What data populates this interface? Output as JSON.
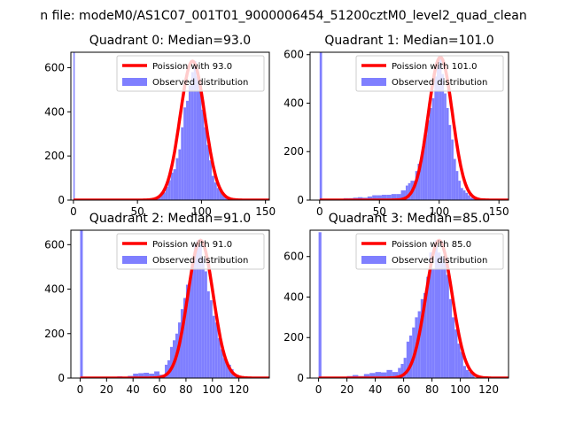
{
  "suptitle": "n file: modeM0/AS1C07_001T01_9000006454_51200cztM0_level2_quad_clean",
  "colors": {
    "hist": "#7f7fff",
    "poisson": "#ff0000",
    "axis": "#000000"
  },
  "chart_data": [
    {
      "type": "bar",
      "title": "Quadrant 0: Median=93.0",
      "xlim": [
        -2,
        153
      ],
      "ylim": [
        0,
        670
      ],
      "xticks": [
        "0",
        "50",
        "100",
        "150"
      ],
      "yticks": [
        "0",
        "200",
        "400",
        "600"
      ],
      "legend_position": "upper right",
      "series": [
        {
          "name": "Poission with 93.0",
          "type": "line",
          "mean": 93.0
        },
        {
          "name": "Observed distribution",
          "type": "histogram",
          "bins": [
            [
              0,
              1,
              700
            ],
            [
              1,
              60,
              0
            ],
            [
              60,
              62,
              5
            ],
            [
              62,
              64,
              8
            ],
            [
              64,
              66,
              10
            ],
            [
              66,
              68,
              15
            ],
            [
              68,
              70,
              25
            ],
            [
              70,
              72,
              35
            ],
            [
              72,
              74,
              60
            ],
            [
              74,
              76,
              90
            ],
            [
              76,
              78,
              125
            ],
            [
              78,
              80,
              140
            ],
            [
              80,
              82,
              190
            ],
            [
              82,
              84,
              230
            ],
            [
              84,
              86,
              330
            ],
            [
              86,
              88,
              420
            ],
            [
              88,
              90,
              450
            ],
            [
              90,
              92,
              520
            ],
            [
              92,
              94,
              580
            ],
            [
              94,
              96,
              630
            ],
            [
              96,
              98,
              560
            ],
            [
              98,
              100,
              500
            ],
            [
              100,
              102,
              410
            ],
            [
              102,
              104,
              330
            ],
            [
              104,
              106,
              250
            ],
            [
              106,
              108,
              180
            ],
            [
              108,
              110,
              110
            ],
            [
              110,
              112,
              80
            ],
            [
              112,
              114,
              55
            ],
            [
              114,
              116,
              40
            ],
            [
              116,
              118,
              25
            ],
            [
              118,
              120,
              15
            ],
            [
              120,
              122,
              10
            ],
            [
              122,
              124,
              5
            ],
            [
              124,
              126,
              3
            ]
          ]
        }
      ]
    },
    {
      "type": "bar",
      "title": "Quadrant 1: Median=101.0",
      "xlim": [
        -8,
        158
      ],
      "ylim": [
        0,
        610
      ],
      "xticks": [
        "0",
        "50",
        "100",
        "150"
      ],
      "yticks": [
        "0",
        "200",
        "400",
        "600"
      ],
      "legend_position": "upper right",
      "series": [
        {
          "name": "Poission with 101.0",
          "type": "line",
          "mean": 101.0
        },
        {
          "name": "Observed distribution",
          "type": "histogram",
          "bins": [
            [
              0,
              2,
              610
            ],
            [
              20,
              24,
              8
            ],
            [
              24,
              28,
              8
            ],
            [
              28,
              32,
              10
            ],
            [
              32,
              36,
              12
            ],
            [
              36,
              40,
              10
            ],
            [
              40,
              44,
              15
            ],
            [
              44,
              48,
              20
            ],
            [
              48,
              52,
              20
            ],
            [
              52,
              56,
              22
            ],
            [
              56,
              60,
              22
            ],
            [
              60,
              64,
              25
            ],
            [
              64,
              68,
              25
            ],
            [
              68,
              72,
              40
            ],
            [
              72,
              74,
              60
            ],
            [
              74,
              76,
              70
            ],
            [
              76,
              78,
              80
            ],
            [
              78,
              80,
              80
            ],
            [
              80,
              82,
              120
            ],
            [
              82,
              84,
              150
            ],
            [
              84,
              86,
              170
            ],
            [
              86,
              88,
              210
            ],
            [
              88,
              90,
              270
            ],
            [
              90,
              92,
              330
            ],
            [
              92,
              94,
              380
            ],
            [
              94,
              96,
              420
            ],
            [
              96,
              98,
              510
            ],
            [
              98,
              100,
              560
            ],
            [
              100,
              102,
              590
            ],
            [
              102,
              104,
              520
            ],
            [
              104,
              106,
              440
            ],
            [
              106,
              108,
              380
            ],
            [
              108,
              110,
              310
            ],
            [
              110,
              112,
              250
            ],
            [
              112,
              114,
              170
            ],
            [
              114,
              116,
              120
            ],
            [
              116,
              118,
              80
            ],
            [
              118,
              120,
              50
            ],
            [
              120,
              122,
              40
            ],
            [
              122,
              124,
              30
            ],
            [
              124,
              126,
              20
            ],
            [
              126,
              128,
              10
            ],
            [
              128,
              130,
              6
            ]
          ]
        }
      ]
    },
    {
      "type": "bar",
      "title": "Quadrant 2: Median=91.0",
      "xlim": [
        -7,
        143
      ],
      "ylim": [
        0,
        665
      ],
      "xticks": [
        "0",
        "20",
        "40",
        "60",
        "80",
        "100",
        "120"
      ],
      "yticks": [
        "0",
        "200",
        "400",
        "600"
      ],
      "legend_position": "upper right",
      "series": [
        {
          "name": "Poission with 91.0",
          "type": "line",
          "mean": 91.0
        },
        {
          "name": "Observed distribution",
          "type": "histogram",
          "bins": [
            [
              0,
              2,
              700
            ],
            [
              20,
              24,
              5
            ],
            [
              24,
              28,
              6
            ],
            [
              28,
              32,
              8
            ],
            [
              32,
              36,
              6
            ],
            [
              36,
              40,
              10
            ],
            [
              40,
              44,
              20
            ],
            [
              44,
              48,
              22
            ],
            [
              48,
              52,
              24
            ],
            [
              52,
              56,
              20
            ],
            [
              56,
              60,
              30
            ],
            [
              60,
              64,
              15
            ],
            [
              64,
              66,
              60
            ],
            [
              66,
              68,
              80
            ],
            [
              68,
              70,
              140
            ],
            [
              70,
              72,
              170
            ],
            [
              72,
              74,
              200
            ],
            [
              74,
              76,
              250
            ],
            [
              76,
              78,
              310
            ],
            [
              78,
              80,
              360
            ],
            [
              80,
              82,
              420
            ],
            [
              82,
              84,
              440
            ],
            [
              84,
              86,
              510
            ],
            [
              86,
              88,
              600
            ],
            [
              88,
              90,
              620
            ],
            [
              90,
              92,
              600
            ],
            [
              92,
              94,
              540
            ],
            [
              94,
              96,
              480
            ],
            [
              96,
              98,
              390
            ],
            [
              98,
              100,
              350
            ],
            [
              100,
              102,
              280
            ],
            [
              102,
              104,
              250
            ],
            [
              104,
              106,
              180
            ],
            [
              106,
              108,
              130
            ],
            [
              108,
              110,
              90
            ],
            [
              110,
              112,
              70
            ],
            [
              112,
              114,
              60
            ],
            [
              114,
              116,
              40
            ],
            [
              116,
              118,
              20
            ],
            [
              118,
              120,
              10
            ]
          ]
        }
      ]
    },
    {
      "type": "bar",
      "title": "Quadrant 3: Median=85.0",
      "xlim": [
        -6,
        134
      ],
      "ylim": [
        0,
        730
      ],
      "xticks": [
        "0",
        "20",
        "40",
        "60",
        "80",
        "100",
        "120"
      ],
      "yticks": [
        "0",
        "200",
        "400",
        "600"
      ],
      "legend_position": "upper right",
      "series": [
        {
          "name": "Poission with 85.0",
          "type": "line",
          "mean": 85.0
        },
        {
          "name": "Observed distribution",
          "type": "histogram",
          "bins": [
            [
              0,
              2,
              720
            ],
            [
              20,
              24,
              10
            ],
            [
              24,
              28,
              15
            ],
            [
              28,
              32,
              10
            ],
            [
              32,
              36,
              20
            ],
            [
              36,
              40,
              25
            ],
            [
              40,
              44,
              30
            ],
            [
              44,
              48,
              28
            ],
            [
              48,
              52,
              40
            ],
            [
              52,
              56,
              30
            ],
            [
              56,
              58,
              50
            ],
            [
              58,
              60,
              70
            ],
            [
              60,
              62,
              100
            ],
            [
              62,
              64,
              180
            ],
            [
              64,
              66,
              210
            ],
            [
              66,
              68,
              250
            ],
            [
              68,
              70,
              300
            ],
            [
              70,
              72,
              330
            ],
            [
              72,
              74,
              390
            ],
            [
              74,
              76,
              420
            ],
            [
              76,
              78,
              500
            ],
            [
              78,
              80,
              620
            ],
            [
              80,
              82,
              540
            ],
            [
              82,
              84,
              680
            ],
            [
              84,
              86,
              620
            ],
            [
              86,
              88,
              600
            ],
            [
              88,
              90,
              570
            ],
            [
              90,
              92,
              510
            ],
            [
              92,
              94,
              390
            ],
            [
              94,
              96,
              300
            ],
            [
              96,
              98,
              240
            ],
            [
              98,
              100,
              170
            ],
            [
              100,
              102,
              130
            ],
            [
              102,
              104,
              60
            ],
            [
              104,
              106,
              40
            ],
            [
              106,
              108,
              30
            ],
            [
              108,
              110,
              20
            ]
          ]
        }
      ]
    }
  ]
}
